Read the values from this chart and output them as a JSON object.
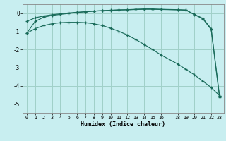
{
  "xlabel": "Humidex (Indice chaleur)",
  "background_color": "#c8eef0",
  "grid_color": "#a0d0c8",
  "line_color": "#1a6b5a",
  "xlim": [
    -0.5,
    23.5
  ],
  "ylim": [
    -5.5,
    0.5
  ],
  "yticks": [
    0,
    -1,
    -2,
    -3,
    -4,
    -5
  ],
  "xticks": [
    0,
    1,
    2,
    3,
    4,
    5,
    6,
    7,
    8,
    9,
    10,
    11,
    12,
    13,
    14,
    15,
    16,
    18,
    19,
    20,
    21,
    22,
    23
  ],
  "line1_x": [
    0,
    1,
    2,
    3,
    4,
    5,
    6,
    7,
    8,
    9,
    10,
    11,
    12,
    13,
    14,
    15,
    16,
    18,
    19,
    20,
    21,
    22,
    23
  ],
  "line1_y": [
    -1.1,
    -0.45,
    -0.22,
    -0.12,
    -0.06,
    -0.01,
    0.04,
    0.08,
    0.12,
    0.15,
    0.17,
    0.19,
    0.2,
    0.22,
    0.24,
    0.24,
    0.22,
    0.2,
    0.18,
    -0.08,
    -0.3,
    -0.9,
    -4.65
  ],
  "line2_x": [
    0,
    1,
    2,
    3,
    4,
    5,
    6,
    7,
    8,
    9,
    10,
    11,
    12,
    13,
    14,
    15,
    16,
    18,
    19,
    20,
    21,
    22,
    23
  ],
  "line2_y": [
    -0.45,
    -0.25,
    -0.15,
    -0.08,
    -0.03,
    0.02,
    0.06,
    0.09,
    0.12,
    0.14,
    0.16,
    0.18,
    0.19,
    0.21,
    0.22,
    0.22,
    0.21,
    0.19,
    0.17,
    -0.06,
    -0.28,
    -0.85,
    -4.58
  ],
  "line3_x": [
    0,
    1,
    2,
    3,
    4,
    5,
    6,
    7,
    8,
    9,
    10,
    11,
    12,
    13,
    14,
    15,
    16,
    18,
    19,
    20,
    21,
    22,
    23
  ],
  "line3_y": [
    -1.1,
    -0.85,
    -0.68,
    -0.58,
    -0.52,
    -0.5,
    -0.5,
    -0.52,
    -0.58,
    -0.68,
    -0.82,
    -1.0,
    -1.2,
    -1.45,
    -1.72,
    -2.0,
    -2.3,
    -2.8,
    -3.1,
    -3.4,
    -3.75,
    -4.1,
    -4.55
  ]
}
